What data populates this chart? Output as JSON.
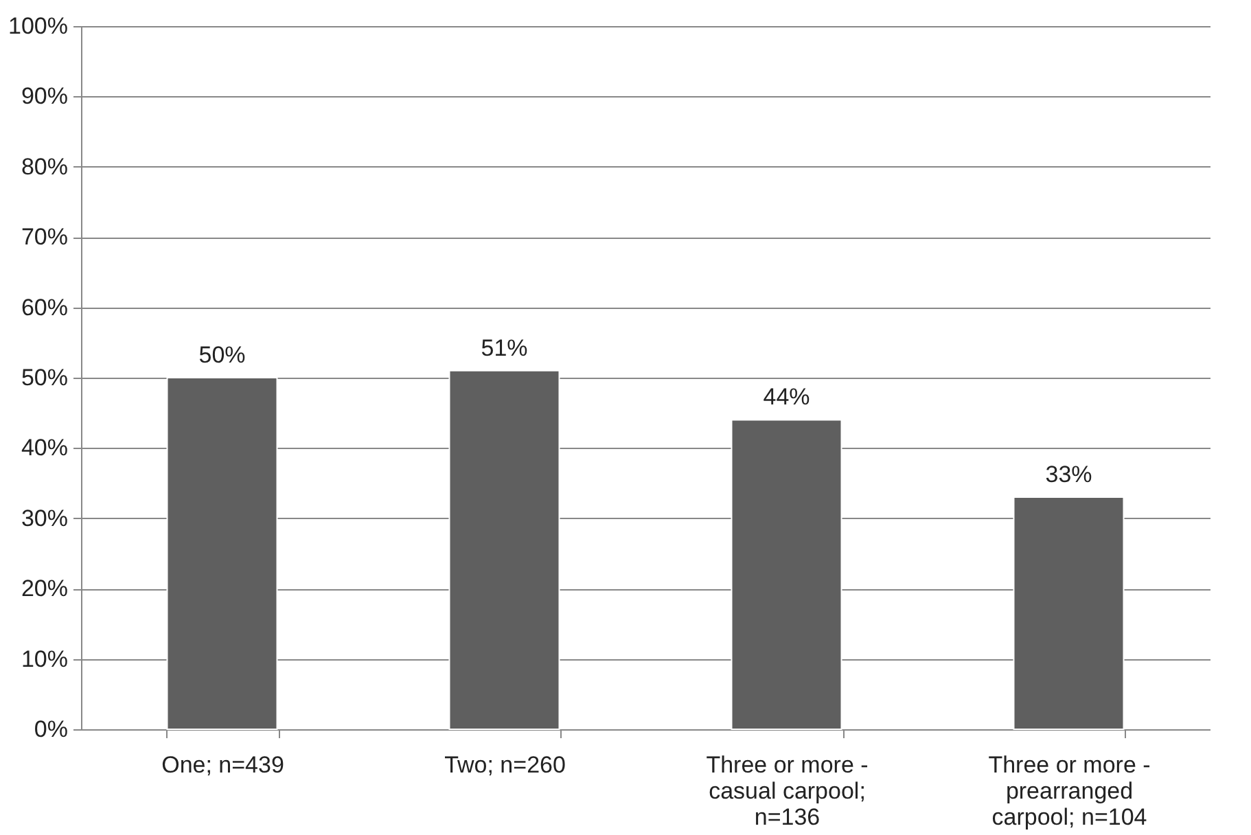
{
  "chart_data": {
    "type": "bar",
    "categories": [
      "One; n=439",
      "Two; n=260",
      "Three or more - casual carpool; n=136",
      "Three or more - prearranged carpool; n=104"
    ],
    "values": [
      50,
      51,
      44,
      33
    ],
    "value_labels": [
      "50%",
      "51%",
      "44%",
      "33%"
    ],
    "color": "#5f5f5f",
    "ylim": [
      0,
      100
    ],
    "yticks": [
      {
        "value": 0,
        "label": "0%"
      },
      {
        "value": 10,
        "label": "10%"
      },
      {
        "value": 20,
        "label": "20%"
      },
      {
        "value": 30,
        "label": "30%"
      },
      {
        "value": 40,
        "label": "40%"
      },
      {
        "value": 50,
        "label": "50%"
      },
      {
        "value": 60,
        "label": "60%"
      },
      {
        "value": 70,
        "label": "70%"
      },
      {
        "value": 80,
        "label": "80%"
      },
      {
        "value": 90,
        "label": "90%"
      },
      {
        "value": 100,
        "label": "100%"
      }
    ],
    "grid": "y"
  }
}
